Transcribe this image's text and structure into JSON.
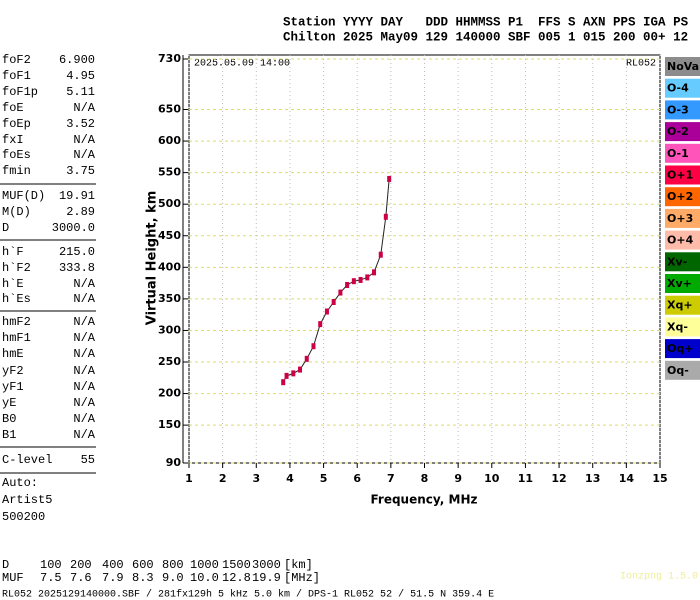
{
  "header": {
    "line1": "Station YYYY DAY   DDD HHMMSS P1  FFS S AXN PPS IGA PS",
    "line2": "Chilton 2025 May09 129 140000 SBF 005 1 015 200 00+ 12"
  },
  "parameters": [
    [
      {
        "label": "foF2",
        "value": "6.900"
      },
      {
        "label": "foF1",
        "value": "4.95"
      },
      {
        "label": "foF1p",
        "value": "5.11"
      },
      {
        "label": "foE",
        "value": "N/A"
      },
      {
        "label": "foEp",
        "value": "3.52"
      },
      {
        "label": "fxI",
        "value": "N/A"
      },
      {
        "label": "foEs",
        "value": "N/A"
      },
      {
        "label": "fmin",
        "value": "3.75"
      }
    ],
    [
      {
        "label": "MUF(D)",
        "value": "19.91"
      },
      {
        "label": "M(D)",
        "value": "2.89"
      },
      {
        "label": "D",
        "value": "3000.0"
      }
    ],
    [
      {
        "label": "h`F",
        "value": "215.0"
      },
      {
        "label": "h`F2",
        "value": "333.8"
      },
      {
        "label": "h`E",
        "value": "N/A"
      },
      {
        "label": "h`Es",
        "value": "N/A"
      }
    ],
    [
      {
        "label": "hmF2",
        "value": "N/A"
      },
      {
        "label": "hmF1",
        "value": "N/A"
      },
      {
        "label": "hmE",
        "value": "N/A"
      },
      {
        "label": "yF2",
        "value": "N/A"
      },
      {
        "label": "yF1",
        "value": "N/A"
      },
      {
        "label": "yE",
        "value": "N/A"
      },
      {
        "label": "B0",
        "value": "N/A"
      },
      {
        "label": "B1",
        "value": "N/A"
      }
    ],
    [
      {
        "label": "C-level",
        "value": "55"
      }
    ]
  ],
  "auto": [
    "Auto:",
    "Artist5",
    "500200"
  ],
  "chart_data": {
    "type": "line",
    "xlabel": "Frequency, MHz",
    "ylabel": "Virtual Height, km",
    "timestamp": "2025.05.09 14:00",
    "station": "RL052",
    "x": [
      3.8,
      3.9,
      4.1,
      4.3,
      4.5,
      4.7,
      4.9,
      5.1,
      5.3,
      5.5,
      5.7,
      5.9,
      6.1,
      6.3,
      6.5,
      6.7,
      6.85,
      6.95
    ],
    "values": [
      218,
      228,
      232,
      238,
      255,
      275,
      310,
      330,
      345,
      360,
      372,
      378,
      380,
      384,
      392,
      420,
      480,
      540
    ],
    "color": "#cc0044",
    "xlim": [
      1,
      15
    ],
    "ylim": [
      90,
      730
    ],
    "xticks": [
      1,
      2,
      3,
      4,
      5,
      6,
      7,
      8,
      9,
      10,
      11,
      12,
      13,
      14,
      15
    ],
    "yticks": [
      90,
      150,
      200,
      250,
      300,
      350,
      400,
      450,
      500,
      550,
      600,
      650,
      730
    ],
    "grid": true,
    "legend": [
      {
        "label": "NoVal",
        "color": "#8c8c8c"
      },
      {
        "label": "O-4",
        "color": "#66ccff"
      },
      {
        "label": "O-3",
        "color": "#3399ff"
      },
      {
        "label": "O-2",
        "color": "#aa0099"
      },
      {
        "label": "O-1",
        "color": "#ff55bb"
      },
      {
        "label": "O+1",
        "color": "#ff0044"
      },
      {
        "label": "O+2",
        "color": "#ff6600"
      },
      {
        "label": "O+3",
        "color": "#ffaa66"
      },
      {
        "label": "O+4",
        "color": "#ffbbaa"
      },
      {
        "label": "Xv-",
        "color": "#006600"
      },
      {
        "label": "Xv+",
        "color": "#00aa00"
      },
      {
        "label": "Xq+",
        "color": "#cccc00"
      },
      {
        "label": "Xq-",
        "color": "#ffff99"
      },
      {
        "label": "Oq+",
        "color": "#0000cc"
      },
      {
        "label": "Oq-",
        "color": "#aaaaaa"
      }
    ]
  },
  "muf_table": {
    "rows": [
      [
        "D",
        "100",
        "200",
        "400",
        "600",
        "800",
        "1000",
        "1500",
        "3000",
        "[km]"
      ],
      [
        "MUF",
        "7.5",
        "7.6",
        "7.9",
        "8.3",
        "9.0",
        "10.0",
        "12.8",
        "19.9",
        "[MHz]"
      ]
    ]
  },
  "footer": "RL052 2025129140000.SBF / 281fx129h 5 kHz 5.0 km / DPS-1 RL052 52 / 51.5 N 359.4 E",
  "version": "Ionzpng 1.5.0"
}
